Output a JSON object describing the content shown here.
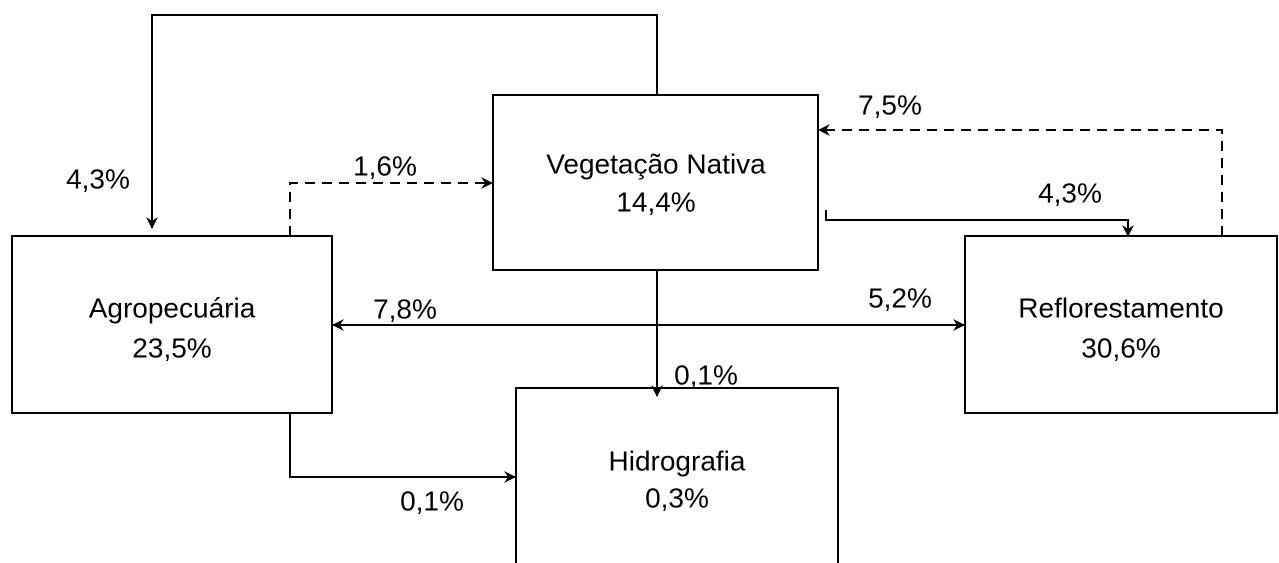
{
  "nodes": [
    {
      "name": "Vegetação Nativa",
      "value": "14,4%"
    },
    {
      "name": "Agropecuária",
      "value": "23,5%"
    },
    {
      "name": "Reflorestamento",
      "value": "30,6%"
    },
    {
      "name": "Hidrografia",
      "value": "0,3%"
    }
  ],
  "edges": [
    {
      "label": "4,3%"
    },
    {
      "label": "1,6%"
    },
    {
      "label": "7,5%"
    },
    {
      "label": "4,3%"
    },
    {
      "label": "7,8%"
    },
    {
      "label": "5,2%"
    },
    {
      "label": "0,1%"
    },
    {
      "label": "0,1%"
    }
  ]
}
